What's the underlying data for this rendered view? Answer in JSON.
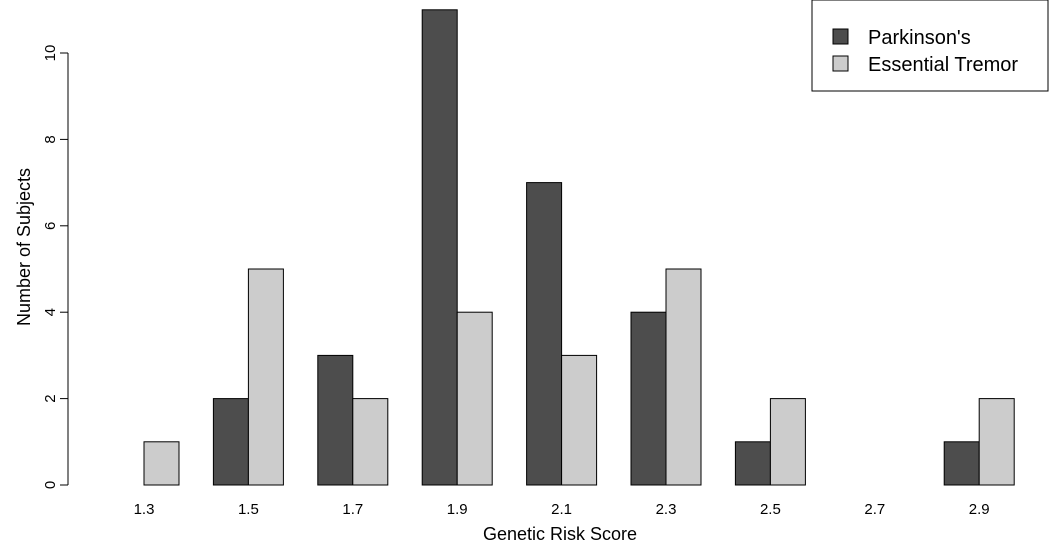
{
  "chart_data": {
    "type": "bar",
    "title": "",
    "xlabel": "Genetic Risk Score",
    "ylabel": "Number of Subjects",
    "categories": [
      "1.3",
      "1.5",
      "1.7",
      "1.9",
      "2.1",
      "2.3",
      "2.5",
      "2.7",
      "2.9"
    ],
    "series": [
      {
        "name": "Parkinson's",
        "color": "#4d4d4d",
        "values": [
          0,
          2,
          3,
          11,
          7,
          4,
          1,
          0,
          1
        ]
      },
      {
        "name": "Essential Tremor",
        "color": "#cccccc",
        "values": [
          1,
          5,
          2,
          4,
          3,
          5,
          2,
          0,
          2
        ]
      }
    ],
    "ylim": [
      0,
      11
    ],
    "yticks": [
      "0",
      "2",
      "4",
      "6",
      "8",
      "10"
    ],
    "grid": false,
    "legend_position": "top-right"
  }
}
